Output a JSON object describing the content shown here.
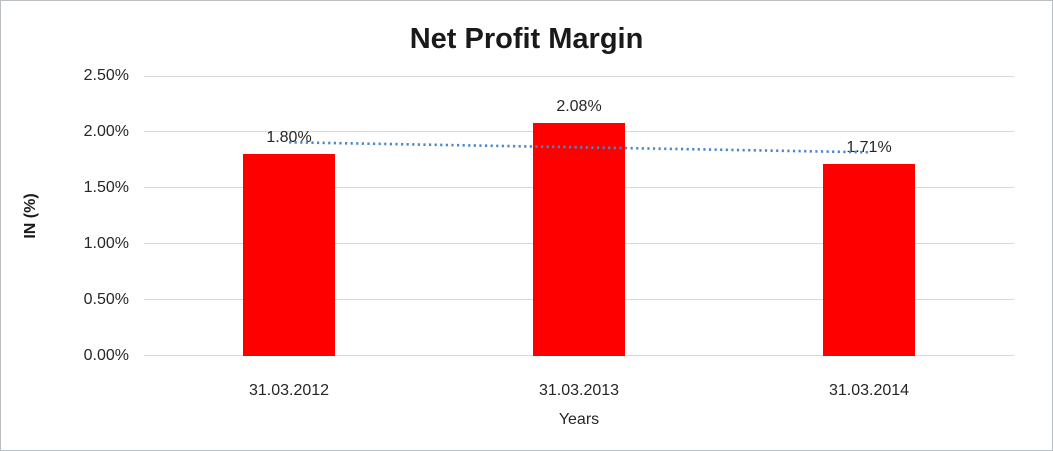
{
  "chart_data": {
    "type": "bar",
    "title": "Net Profit Margin",
    "xlabel": "Years",
    "ylabel": "IN (%)",
    "categories": [
      "31.03.2012",
      "31.03.2013",
      "31.03.2014"
    ],
    "values": [
      1.8,
      2.08,
      1.71
    ],
    "data_labels": [
      "1.80%",
      "2.08%",
      "1.71%"
    ],
    "yticks": [
      "0.00%",
      "0.50%",
      "1.00%",
      "1.50%",
      "2.00%",
      "2.50%"
    ],
    "ylim": [
      0,
      2.5
    ],
    "grid": true,
    "legend_position": "none",
    "trendline": {
      "kind": "linear",
      "style": "dotted"
    },
    "colors": {
      "bar": "#ff0000",
      "trendline": "#4a86c8",
      "gridline": "#d9d9d9",
      "text": "#262626",
      "frame_border": "#b9bec2"
    }
  }
}
